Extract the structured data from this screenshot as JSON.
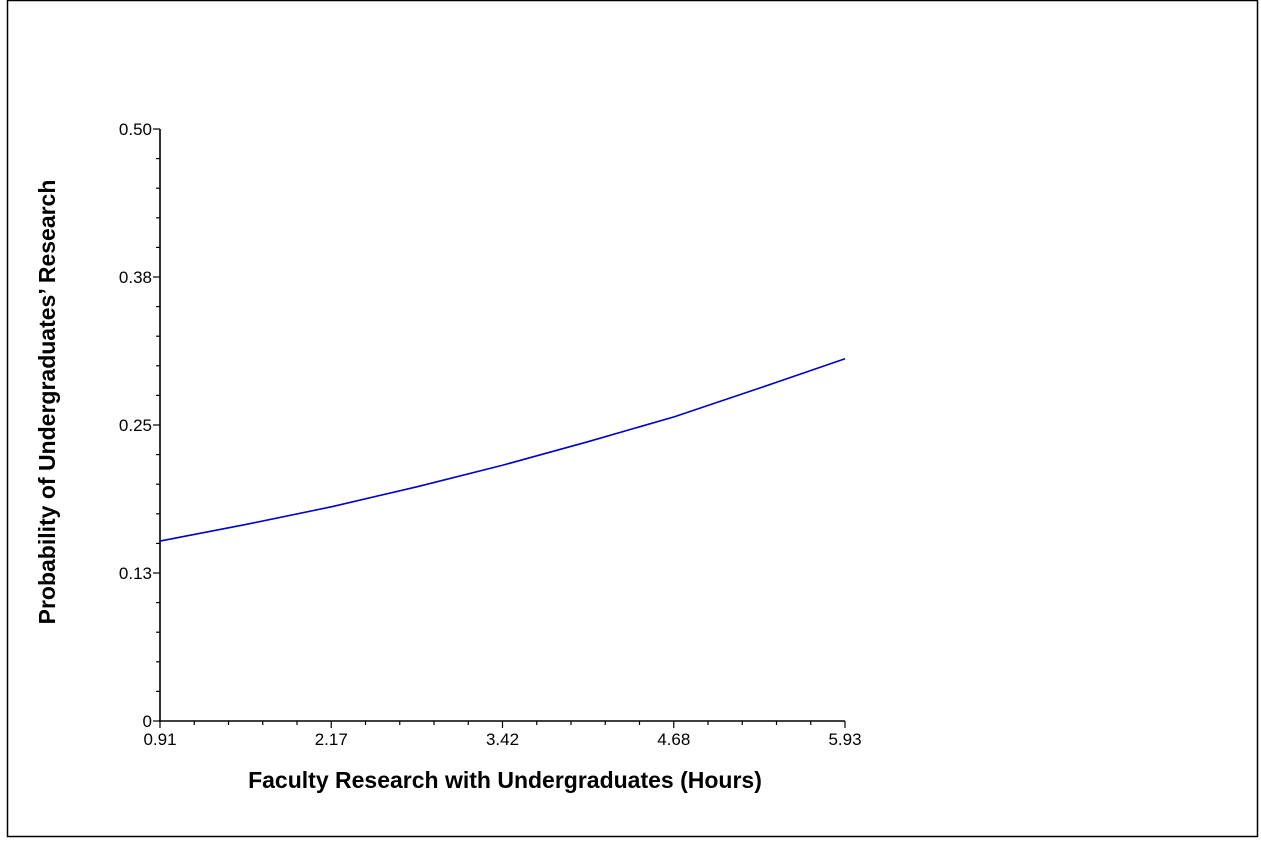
{
  "chart_data": {
    "type": "line",
    "title": "",
    "xlabel": "Faculty Research with Undergraduates (Hours)",
    "ylabel": "Probability of Undergraduates’ Research",
    "xlim": [
      0.91,
      5.93
    ],
    "ylim": [
      0,
      0.5
    ],
    "x_ticks": [
      "0.91",
      "2.17",
      "3.42",
      "4.68",
      "5.93"
    ],
    "y_ticks": [
      "0",
      "0.13",
      "0.25",
      "0.38",
      "0.50"
    ],
    "grid": false,
    "series": [
      {
        "color": "#0000cc",
        "x": [
          0.91,
          1.54,
          2.17,
          2.8,
          3.42,
          4.05,
          4.68,
          5.3,
          5.93
        ],
        "y": [
          0.152,
          0.166,
          0.181,
          0.198,
          0.216,
          0.236,
          0.257,
          0.281,
          0.306
        ]
      }
    ]
  }
}
